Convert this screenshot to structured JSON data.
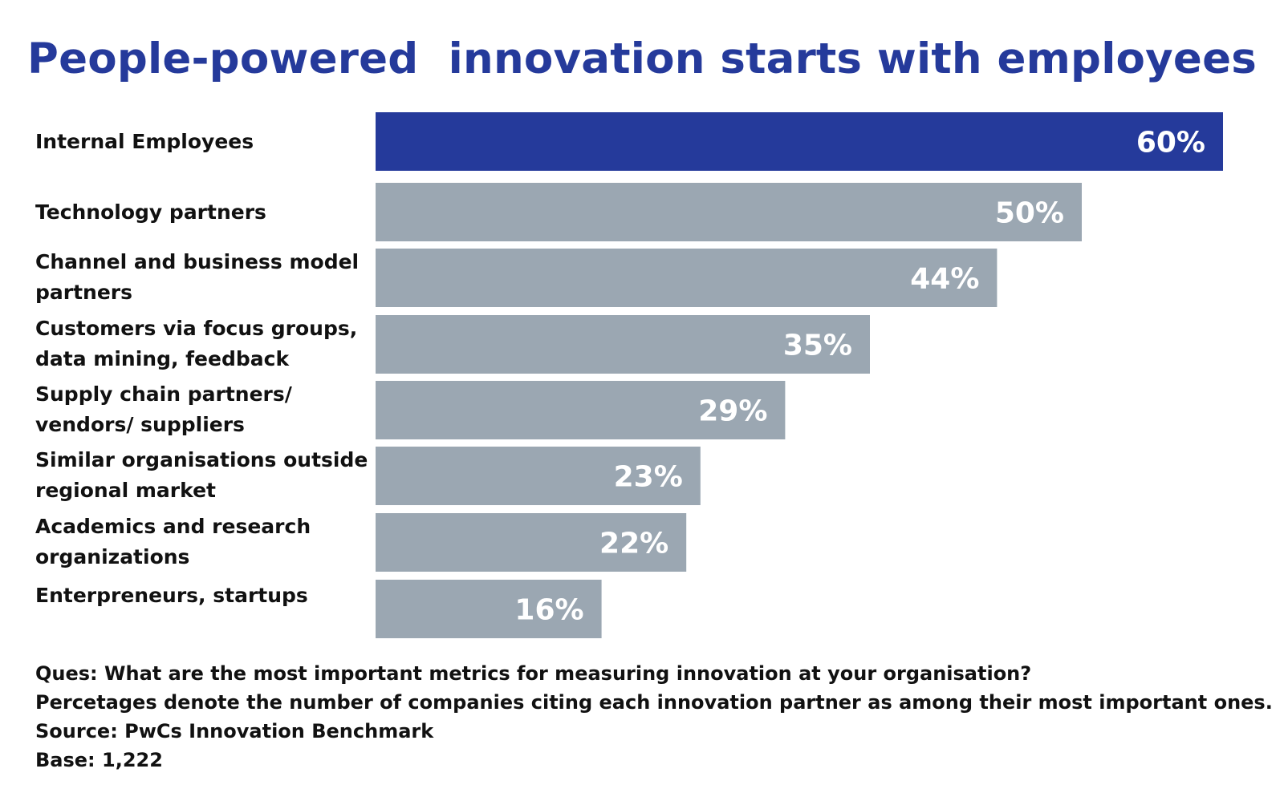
{
  "title": "People-powered  innovation starts with employees",
  "colors": {
    "title": "#253a9b",
    "highlight_bar": "#253a9b",
    "default_bar": "#9ba7b2",
    "bar_label": "#ffffff"
  },
  "chart_data": {
    "type": "bar",
    "orientation": "horizontal",
    "categories": [
      "Internal Employees",
      "Technology partners",
      "Channel and business model partners",
      "Customers via focus groups, data mining, feedback",
      "Supply chain partners/ vendors/ suppliers",
      "Similar organisations outside regional market",
      "Academics and research organizations",
      "Enterpreneurs, startups"
    ],
    "category_lines": [
      [
        "Internal Employees"
      ],
      [
        "Technology partners"
      ],
      [
        "Channel and business model",
        "partners"
      ],
      [
        "Customers via focus groups,",
        "data mining, feedback"
      ],
      [
        "Supply chain partners/",
        "vendors/ suppliers"
      ],
      [
        "Similar organisations outside",
        "regional market"
      ],
      [
        "Academics and research",
        "organizations"
      ],
      [
        "Enterpreneurs, startups"
      ]
    ],
    "values": [
      60,
      50,
      44,
      35,
      29,
      23,
      22,
      16
    ],
    "value_labels": [
      "60%",
      "50%",
      "44%",
      "35%",
      "29%",
      "23%",
      "22%",
      "16%"
    ],
    "highlight_index": 0,
    "unit": "%",
    "xlim": [
      0,
      60
    ],
    "grid": false,
    "legend": "none"
  },
  "footer": {
    "question": "Ques: What are the most important metrics for measuring innovation at your organisation?",
    "note": "Percetages denote the number of companies citing each innovation partner as among their most important ones.",
    "source": "Source: PwCs Innovation Benchmark",
    "base": "Base: 1,222"
  }
}
